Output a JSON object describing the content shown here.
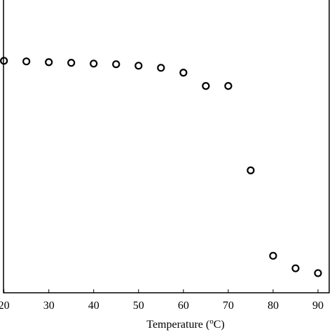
{
  "chart_data": {
    "type": "scatter",
    "x_label_parts": [
      "Temperature (",
      "o",
      "C)"
    ],
    "x": [
      20,
      25,
      30,
      35,
      40,
      45,
      50,
      55,
      60,
      65,
      70,
      75,
      80,
      85,
      90
    ],
    "series": [
      {
        "color": "#000000",
        "values": [
          276,
          272,
          267,
          263,
          258,
          254,
          245,
          233,
          207,
          150,
          150,
          19.4,
          2.45,
          1.81,
          1.61
        ]
      }
    ],
    "xlim": [
      19.9,
      92.5
    ],
    "xticks": [
      20,
      30,
      40,
      50,
      60,
      70,
      80,
      90
    ],
    "ylim": [
      1,
      1225
    ],
    "ylog": true
  }
}
